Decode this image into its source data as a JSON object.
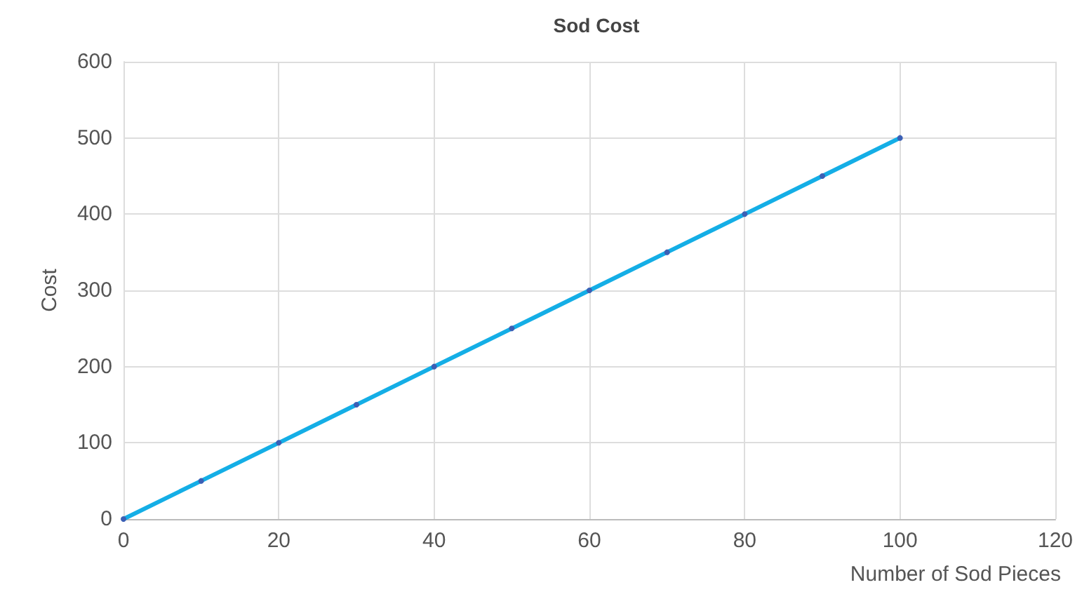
{
  "chart_data": {
    "type": "line",
    "title": "Sod Cost",
    "xlabel": "Number of Sod Pieces",
    "ylabel": "Cost",
    "x": [
      0,
      10,
      20,
      30,
      40,
      50,
      60,
      70,
      80,
      90,
      100
    ],
    "series": [
      {
        "color": "#14aee6",
        "values": [
          0,
          50,
          100,
          150,
          200,
          250,
          300,
          350,
          400,
          450,
          500
        ]
      }
    ],
    "xlim": [
      0,
      120
    ],
    "xticks": [
      0,
      20,
      40,
      60,
      80,
      100,
      120
    ],
    "ylim": [
      0,
      600
    ],
    "yticks": [
      0,
      100,
      200,
      300,
      400,
      500,
      600
    ],
    "grid": true,
    "marker": "circle",
    "line_style": "solid"
  }
}
